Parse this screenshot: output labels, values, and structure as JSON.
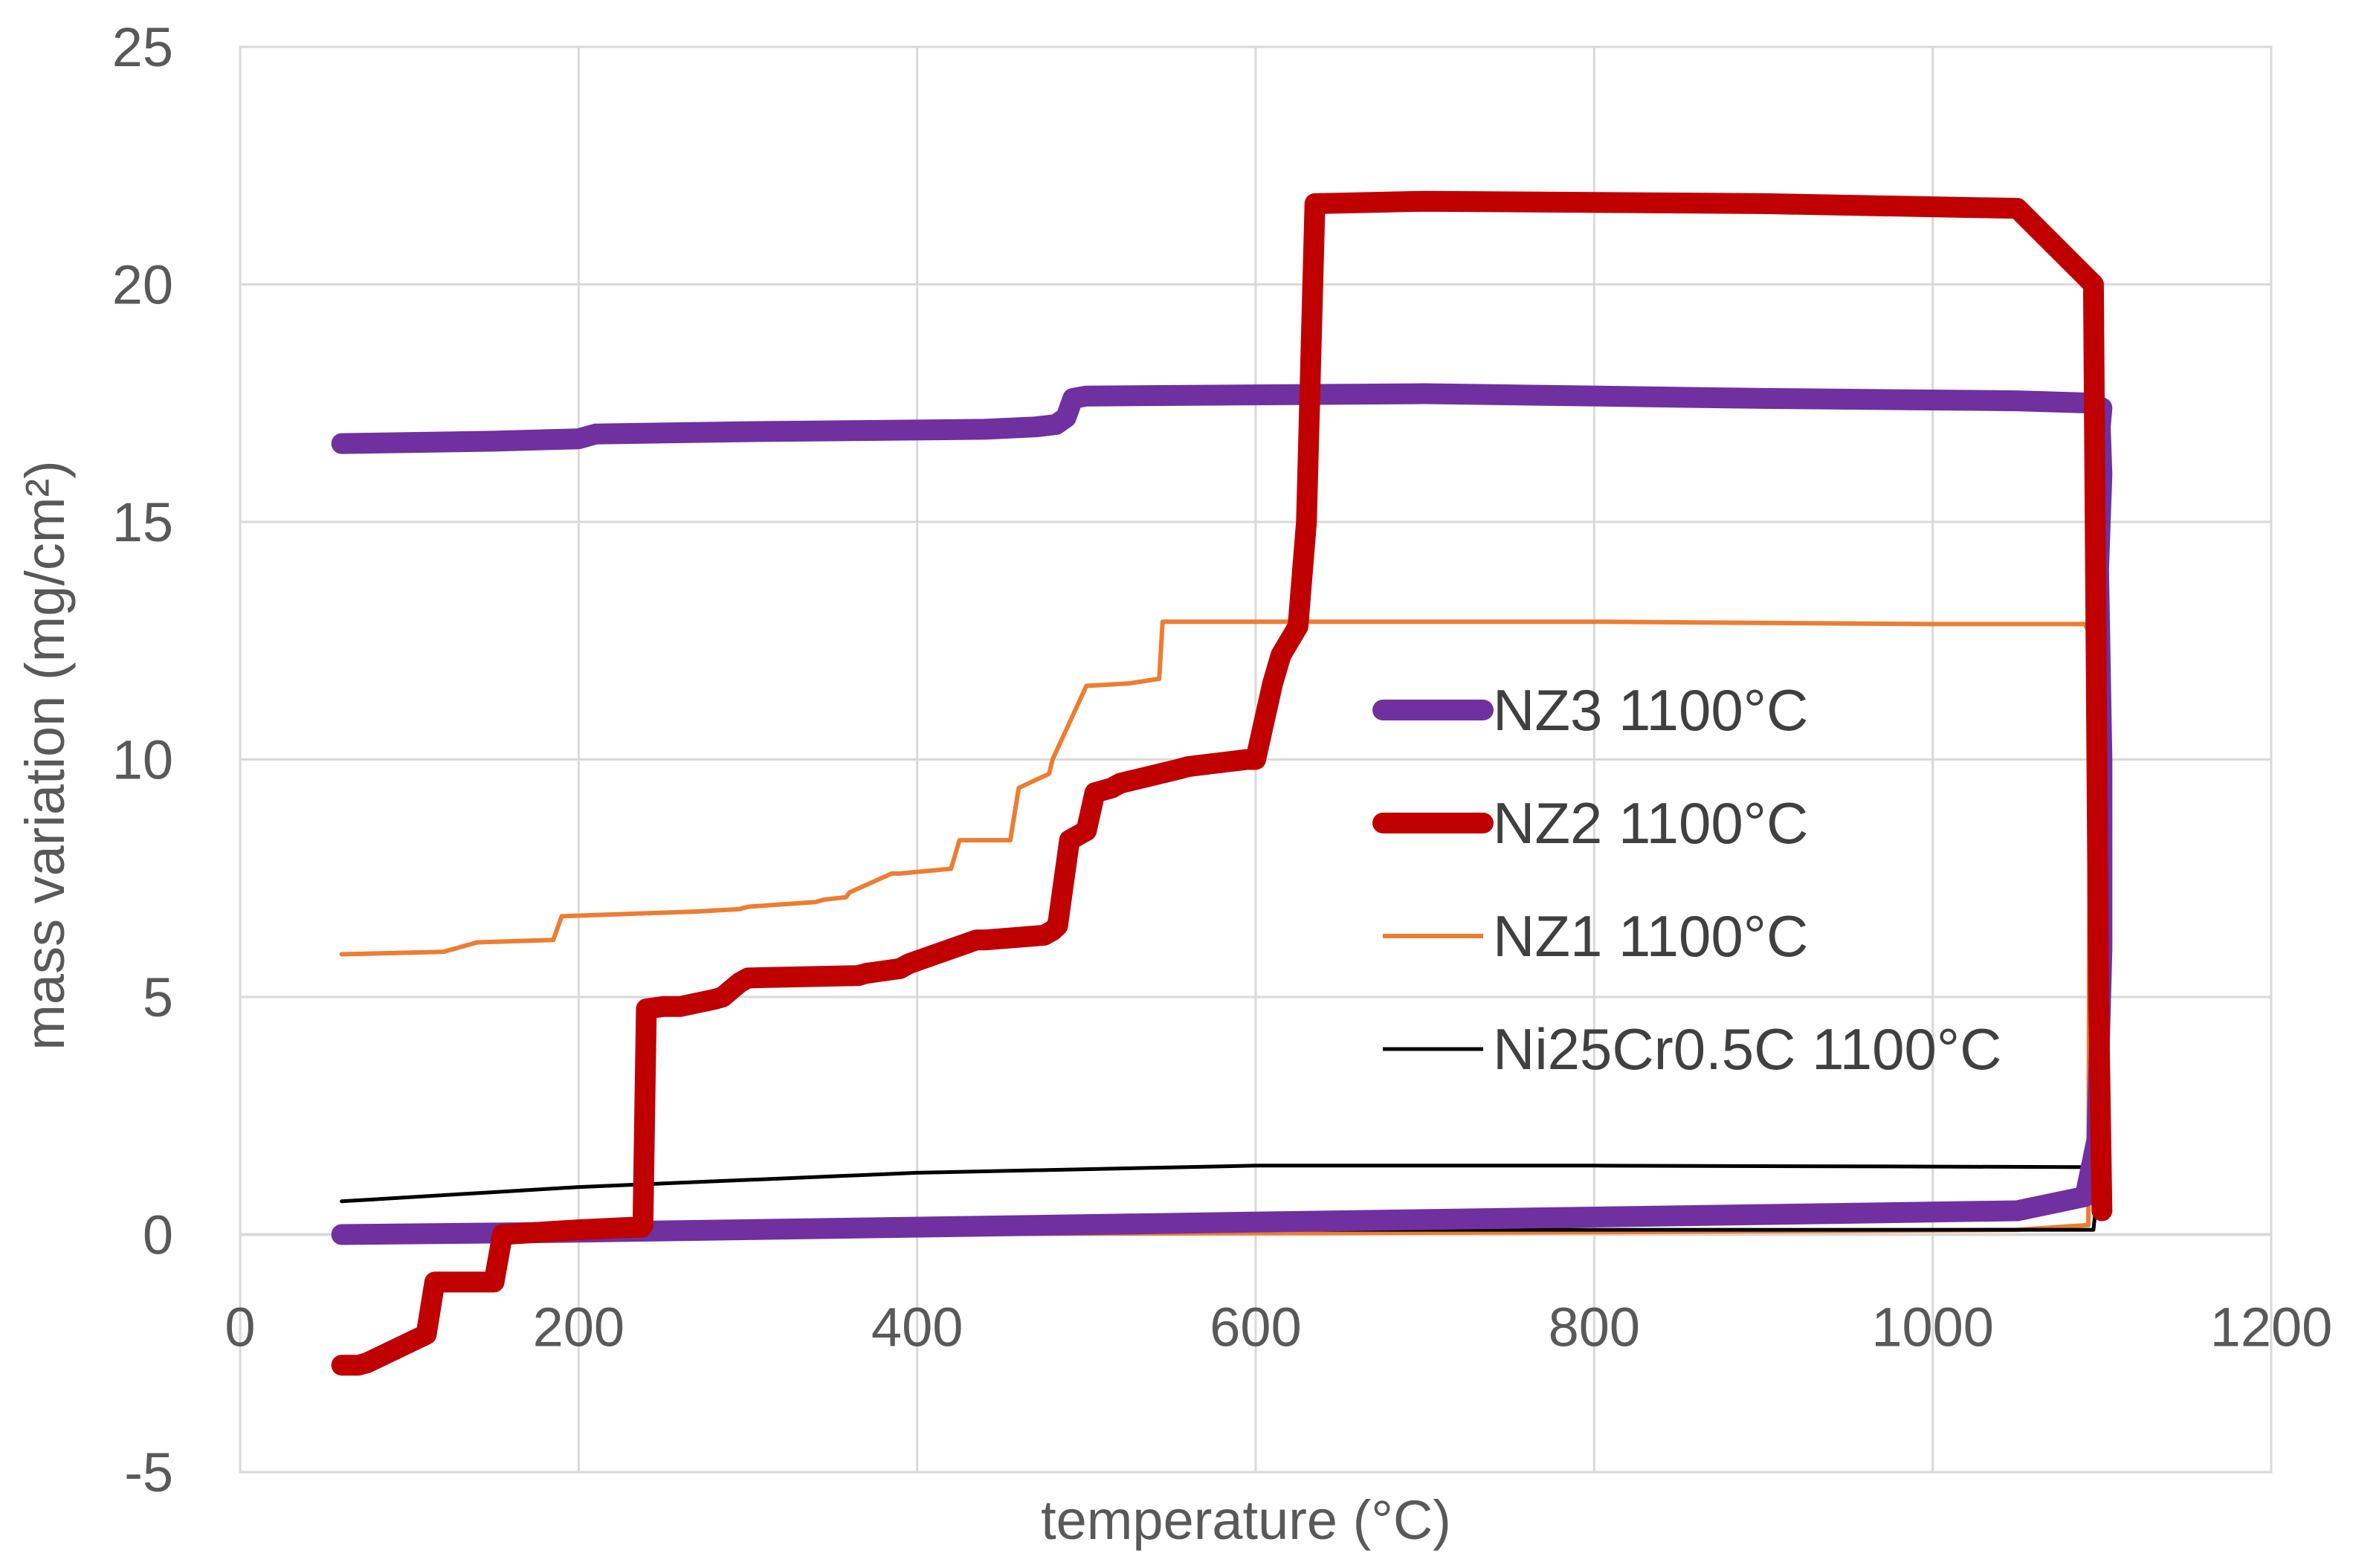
{
  "chart_data": {
    "type": "line",
    "title": "",
    "xlabel": "temperature (°C)",
    "ylabel": "mass variation (mg/cm²)",
    "xlim": [
      0,
      1200
    ],
    "ylim": [
      -5,
      25
    ],
    "xticks": [
      0,
      200,
      400,
      600,
      800,
      1000,
      1200
    ],
    "yticks": [
      -5,
      0,
      5,
      10,
      15,
      20,
      25
    ],
    "grid": true,
    "legend_position": "center-right",
    "series": [
      {
        "name": "NZ3 1100°C",
        "color": "#7030a0",
        "width": "thick",
        "x": [
          60,
          200,
          1050,
          1090,
          1097,
          1100,
          1100,
          1098,
          1100,
          1099,
          1100,
          1095,
          1050,
          900,
          700,
          500,
          492,
          488,
          482,
          470,
          440,
          300,
          210,
          200,
          150,
          60
        ],
        "y": [
          0.0,
          0.05,
          0.5,
          0.8,
          2.0,
          6.0,
          10.0,
          14.0,
          16.0,
          17.0,
          17.4,
          17.5,
          17.55,
          17.6,
          17.7,
          17.65,
          17.6,
          17.2,
          17.05,
          17.0,
          16.95,
          16.9,
          16.85,
          16.75,
          16.7,
          16.65
        ]
      },
      {
        "name": "NZ2 1100°C",
        "color": "#c00000",
        "width": "thick",
        "x": [
          1100,
          1098,
          1095,
          1050,
          900,
          700,
          635,
          630,
          625,
          615,
          610,
          600,
          595,
          560,
          555,
          520,
          515,
          505,
          500,
          490,
          483,
          480,
          475,
          440,
          435,
          395,
          390,
          370,
          365,
          300,
          295,
          285,
          280,
          260,
          250,
          240,
          238,
          237,
          230,
          200,
          155,
          150,
          115,
          110,
          75,
          70,
          60
        ],
        "y": [
          0.5,
          5.0,
          20.0,
          21.6,
          21.7,
          21.75,
          21.7,
          15.0,
          12.8,
          12.2,
          11.6,
          10.0,
          10.0,
          9.85,
          9.8,
          9.5,
          9.4,
          9.3,
          8.5,
          8.3,
          6.5,
          6.4,
          6.3,
          6.2,
          6.2,
          5.7,
          5.6,
          5.5,
          5.45,
          5.4,
          5.3,
          5.0,
          4.95,
          4.8,
          4.8,
          4.75,
          0.2,
          0.15,
          0.15,
          0.1,
          0.0,
          -1.0,
          -1.0,
          -2.1,
          -2.7,
          -2.75,
          -2.75
        ]
      },
      {
        "name": "NZ1 1100°C",
        "color": "#ed7d31",
        "width": "medium",
        "x": [
          60,
          300,
          800,
          1050,
          1092,
          1093,
          1092,
          1090,
          1000,
          800,
          600,
          545,
          543,
          525,
          500,
          480,
          478,
          460,
          455,
          425,
          420,
          390,
          385,
          360,
          358,
          345,
          340,
          300,
          295,
          270,
          190,
          185,
          140,
          135,
          120,
          60
        ],
        "y": [
          0.0,
          0.0,
          0.05,
          0.1,
          0.2,
          12.0,
          12.7,
          12.85,
          12.85,
          12.9,
          12.9,
          12.9,
          11.7,
          11.6,
          11.55,
          10.0,
          9.7,
          9.4,
          8.3,
          8.3,
          7.7,
          7.6,
          7.6,
          7.2,
          7.1,
          7.05,
          7.0,
          6.9,
          6.85,
          6.8,
          6.7,
          6.2,
          6.15,
          6.1,
          5.95,
          5.9
        ]
      },
      {
        "name": "Ni25Cr0.5C 1100°C",
        "color": "#000000",
        "width": "thin",
        "x": [
          60,
          300,
          600,
          1095,
          1097,
          1098,
          1099,
          1100,
          1098,
          1000,
          800,
          600,
          400,
          200,
          60
        ],
        "y": [
          0.1,
          0.1,
          0.1,
          0.1,
          0.8,
          1.3,
          1.4,
          1.4,
          1.42,
          1.43,
          1.45,
          1.45,
          1.3,
          1.0,
          0.7
        ]
      }
    ]
  }
}
